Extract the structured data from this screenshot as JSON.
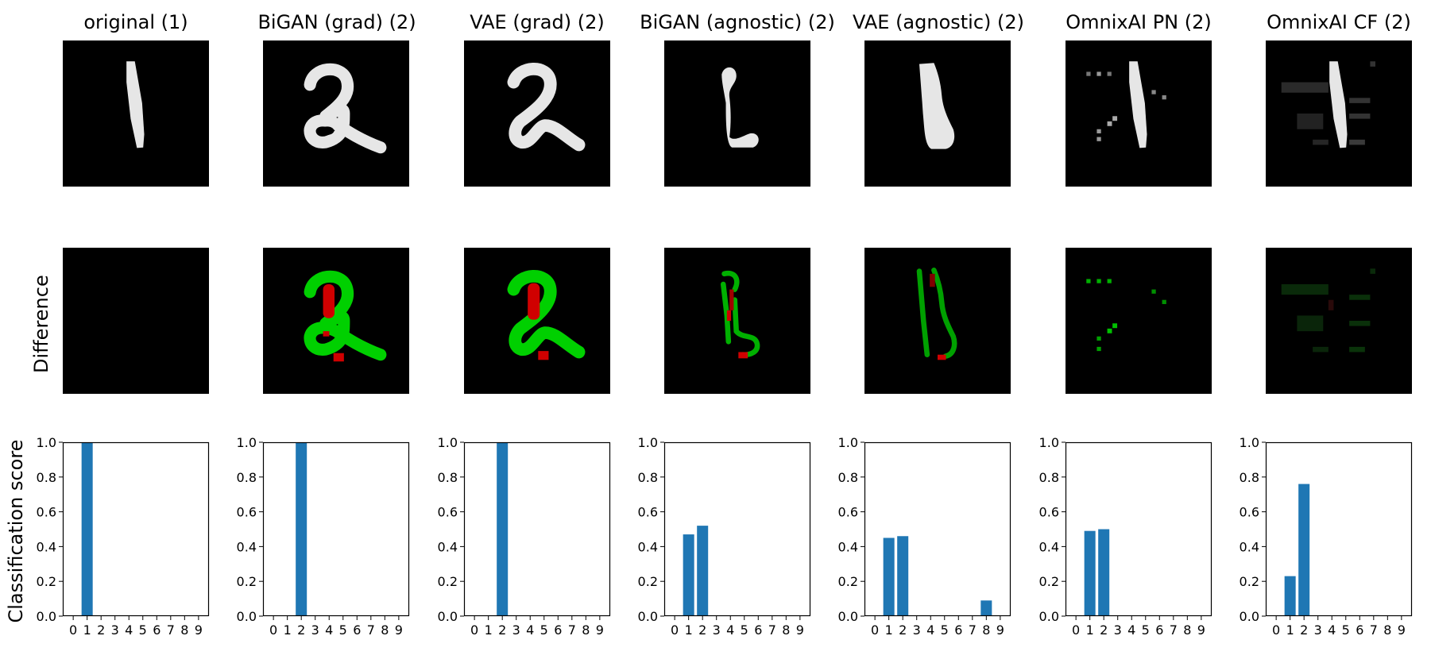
{
  "row_labels": {
    "difference": "Difference",
    "score": "Classification score"
  },
  "colors": {
    "bar": "#1f77b4",
    "digit_fill": "#e6e6e6",
    "added": "#00d000",
    "removed": "#d00000",
    "background": "#000000"
  },
  "panels": [
    {
      "title": "original (1)",
      "image_icon": "digit-1-icon",
      "diff_icon": "empty-diff-icon"
    },
    {
      "title": "BiGAN (grad) (2)",
      "image_icon": "digit-2-bigan-grad-icon",
      "diff_icon": "diff-bigan-grad-icon"
    },
    {
      "title": "VAE (grad) (2)",
      "image_icon": "digit-2-vae-grad-icon",
      "diff_icon": "diff-vae-grad-icon"
    },
    {
      "title": "BiGAN (agnostic) (2)",
      "image_icon": "digit-2-bigan-agnostic-icon",
      "diff_icon": "diff-bigan-agnostic-icon"
    },
    {
      "title": "VAE (agnostic) (2)",
      "image_icon": "digit-2-vae-agnostic-icon",
      "diff_icon": "diff-vae-agnostic-icon"
    },
    {
      "title": "OmnixAI PN (2)",
      "image_icon": "digit-1-omnixai-pn-icon",
      "diff_icon": "diff-omnixai-pn-icon"
    },
    {
      "title": "OmnixAI CF (2)",
      "image_icon": "digit-1-omnixai-cf-icon",
      "diff_icon": "diff-omnixai-cf-icon"
    }
  ],
  "chart_data": [
    {
      "type": "bar",
      "title": "original (1)",
      "categories": [
        "0",
        "1",
        "2",
        "3",
        "4",
        "5",
        "6",
        "7",
        "8",
        "9"
      ],
      "values": [
        0,
        1.0,
        0,
        0,
        0,
        0,
        0,
        0,
        0,
        0
      ],
      "ylim": [
        0,
        1.0
      ],
      "yticks": [
        "0.0",
        "0.2",
        "0.4",
        "0.6",
        "0.8",
        "1.0"
      ],
      "ylabel": "Classification score",
      "xlabel": ""
    },
    {
      "type": "bar",
      "title": "BiGAN (grad) (2)",
      "categories": [
        "0",
        "1",
        "2",
        "3",
        "4",
        "5",
        "6",
        "7",
        "8",
        "9"
      ],
      "values": [
        0,
        0,
        1.0,
        0,
        0,
        0,
        0,
        0,
        0,
        0
      ],
      "ylim": [
        0,
        1.0
      ],
      "yticks": [
        "0.0",
        "0.2",
        "0.4",
        "0.6",
        "0.8",
        "1.0"
      ],
      "ylabel": "",
      "xlabel": ""
    },
    {
      "type": "bar",
      "title": "VAE (grad) (2)",
      "categories": [
        "0",
        "1",
        "2",
        "3",
        "4",
        "5",
        "6",
        "7",
        "8",
        "9"
      ],
      "values": [
        0,
        0,
        1.0,
        0,
        0,
        0,
        0,
        0,
        0,
        0
      ],
      "ylim": [
        0,
        1.0
      ],
      "yticks": [
        "0.0",
        "0.2",
        "0.4",
        "0.6",
        "0.8",
        "1.0"
      ],
      "ylabel": "",
      "xlabel": ""
    },
    {
      "type": "bar",
      "title": "BiGAN (agnostic) (2)",
      "categories": [
        "0",
        "1",
        "2",
        "3",
        "4",
        "5",
        "6",
        "7",
        "8",
        "9"
      ],
      "values": [
        0,
        0.47,
        0.52,
        0,
        0,
        0,
        0,
        0,
        0,
        0
      ],
      "ylim": [
        0,
        1.0
      ],
      "yticks": [
        "0.0",
        "0.2",
        "0.4",
        "0.6",
        "0.8",
        "1.0"
      ],
      "ylabel": "",
      "xlabel": ""
    },
    {
      "type": "bar",
      "title": "VAE (agnostic) (2)",
      "categories": [
        "0",
        "1",
        "2",
        "3",
        "4",
        "5",
        "6",
        "7",
        "8",
        "9"
      ],
      "values": [
        0,
        0.45,
        0.46,
        0,
        0,
        0,
        0,
        0,
        0.09,
        0
      ],
      "ylim": [
        0,
        1.0
      ],
      "yticks": [
        "0.0",
        "0.2",
        "0.4",
        "0.6",
        "0.8",
        "1.0"
      ],
      "ylabel": "",
      "xlabel": ""
    },
    {
      "type": "bar",
      "title": "OmnixAI PN (2)",
      "categories": [
        "0",
        "1",
        "2",
        "3",
        "4",
        "5",
        "6",
        "7",
        "8",
        "9"
      ],
      "values": [
        0,
        0.49,
        0.5,
        0,
        0,
        0,
        0,
        0,
        0,
        0
      ],
      "ylim": [
        0,
        1.0
      ],
      "yticks": [
        "0.0",
        "0.2",
        "0.4",
        "0.6",
        "0.8",
        "1.0"
      ],
      "ylabel": "",
      "xlabel": ""
    },
    {
      "type": "bar",
      "title": "OmnixAI CF (2)",
      "categories": [
        "0",
        "1",
        "2",
        "3",
        "4",
        "5",
        "6",
        "7",
        "8",
        "9"
      ],
      "values": [
        0,
        0.23,
        0.76,
        0,
        0,
        0,
        0,
        0.005,
        0,
        0
      ],
      "ylim": [
        0,
        1.0
      ],
      "yticks": [
        "0.0",
        "0.2",
        "0.4",
        "0.6",
        "0.8",
        "1.0"
      ],
      "ylabel": "",
      "xlabel": ""
    }
  ]
}
